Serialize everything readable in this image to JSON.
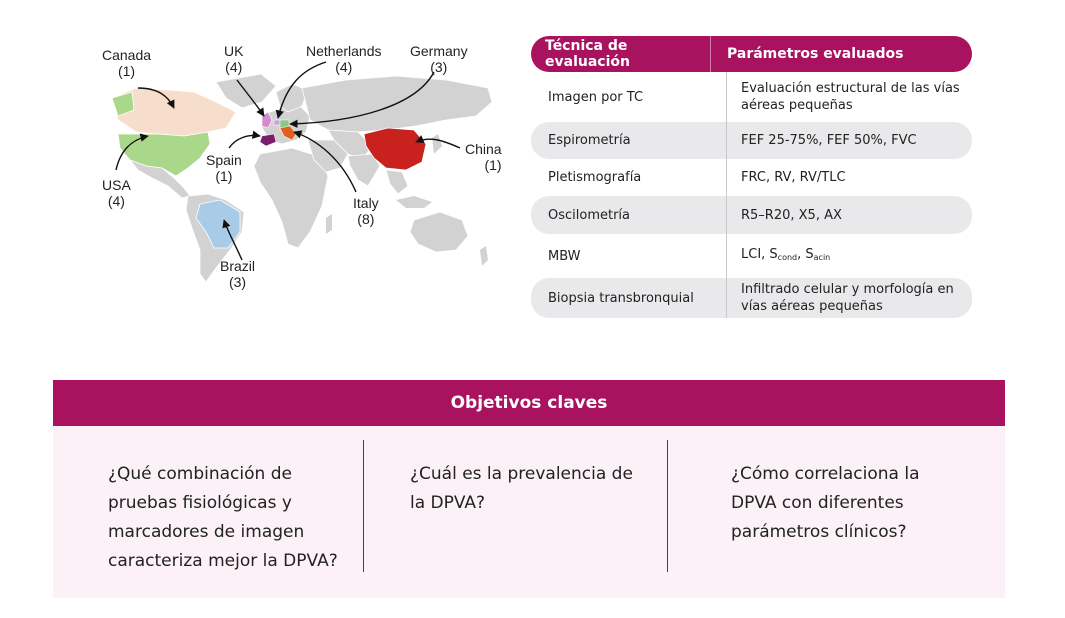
{
  "map": {
    "countries": [
      {
        "name": "Canada",
        "count": "(1)",
        "color": "#f7ddcc"
      },
      {
        "name": "UK",
        "count": "(4)",
        "color": "#d58ccf"
      },
      {
        "name": "Netherlands",
        "count": "(4)",
        "color": "#c8a4d8"
      },
      {
        "name": "Germany",
        "count": "(3)",
        "color": "#8cc888"
      },
      {
        "name": "China",
        "count": "(1)",
        "color": "#c8211e"
      },
      {
        "name": "USA",
        "count": "(4)",
        "color": "#a9d88a"
      },
      {
        "name": "Spain",
        "count": "(1)",
        "color": "#7a1d6b"
      },
      {
        "name": "Italy",
        "count": "(8)",
        "color": "#e0611f"
      },
      {
        "name": "Brazil",
        "count": "(3)",
        "color": "#a8cbe8"
      }
    ],
    "land_color": "#d2d2d2",
    "arrow_color": "#111111"
  },
  "table": {
    "header": {
      "technique": "Técnica de evaluación",
      "parameters": "Parámetros evaluados"
    },
    "rows": [
      {
        "technique": "Imagen por TC",
        "parameters": "Evaluación estructural de las vías aéreas pequeñas"
      },
      {
        "technique": "Espirometría",
        "parameters": "FEF 25-75%, FEF 50%, FVC"
      },
      {
        "technique": "Pletismografía",
        "parameters": "FRC, RV, RV/TLC"
      },
      {
        "technique": "Oscilometría",
        "parameters": "R5–R20, X5, AX"
      },
      {
        "technique": "MBW",
        "parameters_prefix": "LCI, S",
        "sub1": "cond",
        "sep": ", S",
        "sub2": "acin"
      },
      {
        "technique": "Biopsia transbronquial",
        "parameters": "Infiltrado celular y morfología en vías aéreas pequeñas"
      }
    ],
    "accent_color": "#a8125e",
    "shade_color": "#e9e8ea"
  },
  "objectives": {
    "title": "Objetivos claves",
    "items": [
      "¿Qué combinación de pruebas fisiológicas y marcadores de imagen caracteriza mejor la DPVA?",
      "¿Cuál es la prevalencia de la DPVA?",
      "¿Cómo correlaciona la DPVA con diferentes parámetros clínicos?"
    ],
    "accent_color": "#a8125e",
    "background_color": "#fbf1f6"
  }
}
